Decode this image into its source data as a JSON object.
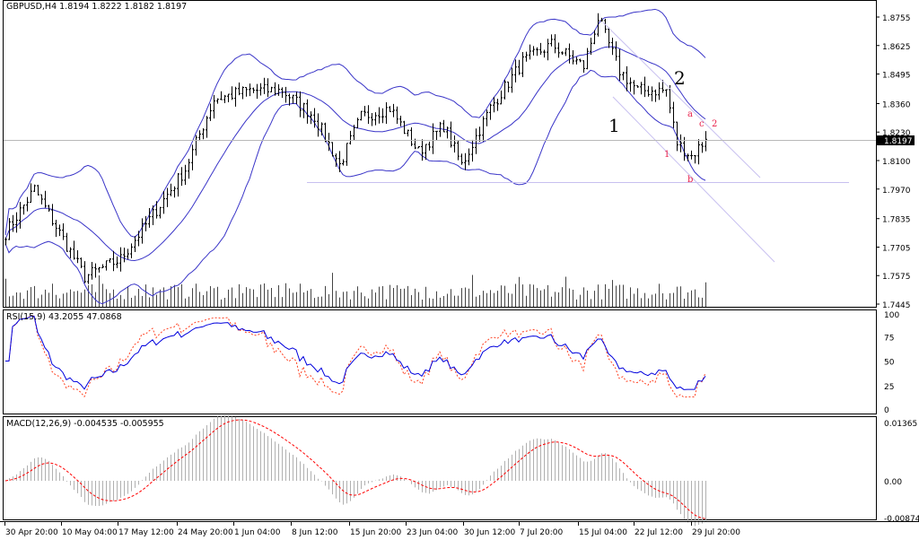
{
  "window": {
    "symbol_info": "GBPUSD,H4  1.8194 1.8222 1.8182 1.8197"
  },
  "colors": {
    "bars": "#000000",
    "bands": "#3a35c8",
    "rsi_main": "#0000dd",
    "rsi_signal": "#ff4020",
    "macd_hist": "#b0b0b0",
    "macd_signal": "#ff0000",
    "channel": "#c8c0f0",
    "wave_labels_minor": "#e8204a",
    "current_price_bg": "#000000"
  },
  "chart_data": [
    {
      "type": "ohlc",
      "symbol": "GBPUSD",
      "timeframe": "H4",
      "ohlc_last": {
        "open": 1.8194,
        "high": 1.8222,
        "low": 1.8182,
        "close": 1.8197
      },
      "current_price_label": "1.8197",
      "y_ticks": [
        "1.8755",
        "1.8625",
        "1.8495",
        "1.8360",
        "1.8230",
        "1.8100",
        "1.7970",
        "1.7835",
        "1.7705",
        "1.7575",
        "1.7445"
      ],
      "ylim": [
        1.7445,
        1.8755
      ],
      "x_ticks": [
        "30 Apr 20:00",
        "10 May 04:00",
        "17 May 12:00",
        "24 May 20:00",
        "1 Jun 04:00",
        "8 Jun 12:00",
        "15 Jun 20:00",
        "23 Jun 04:00",
        "30 Jun 12:00",
        "7 Jul 20:00",
        "15 Jul 04:00",
        "22 Jul 12:00",
        "29 Jul 20:00"
      ],
      "approx_close_path": [
        [
          0,
          1.777
        ],
        [
          8,
          1.797
        ],
        [
          22,
          1.757
        ],
        [
          32,
          1.765
        ],
        [
          40,
          1.783
        ],
        [
          50,
          1.806
        ],
        [
          58,
          1.838
        ],
        [
          68,
          1.842
        ],
        [
          77,
          1.842
        ],
        [
          86,
          1.83
        ],
        [
          93,
          1.808
        ],
        [
          99,
          1.83
        ],
        [
          107,
          1.834
        ],
        [
          115,
          1.814
        ],
        [
          122,
          1.826
        ],
        [
          127,
          1.808
        ],
        [
          135,
          1.834
        ],
        [
          144,
          1.855
        ],
        [
          152,
          1.863
        ],
        [
          161,
          1.853
        ],
        [
          165,
          1.875
        ],
        [
          171,
          1.851
        ],
        [
          176,
          1.842
        ],
        [
          184,
          1.842
        ],
        [
          187,
          1.818
        ],
        [
          191,
          1.812
        ],
        [
          195,
          1.8197
        ]
      ],
      "overlays": {
        "bollinger_bands": true,
        "volume": true
      },
      "annotations": {
        "wave_major": [
          "1",
          "2"
        ],
        "wave_minor": [
          "a",
          "c",
          "2",
          "1",
          "b"
        ]
      }
    },
    {
      "type": "line",
      "title": "RSI(15,9)",
      "readout": "RSI(15,9)  43.2055  47.0868",
      "values_last": [
        43.2055,
        47.0868
      ],
      "y_ticks": [
        "100",
        "75",
        "50",
        "25",
        "0"
      ],
      "ylim": [
        0,
        100
      ]
    },
    {
      "type": "bar",
      "title": "MACD(12,26,9)",
      "readout": "MACD(12,26,9)  -0.004535  -0.005955",
      "values_last": [
        -0.004535,
        -0.005955
      ],
      "y_ticks": [
        "0.01365",
        "0.00",
        "-0.00874"
      ],
      "ylim": [
        -0.00874,
        0.01365
      ]
    }
  ]
}
